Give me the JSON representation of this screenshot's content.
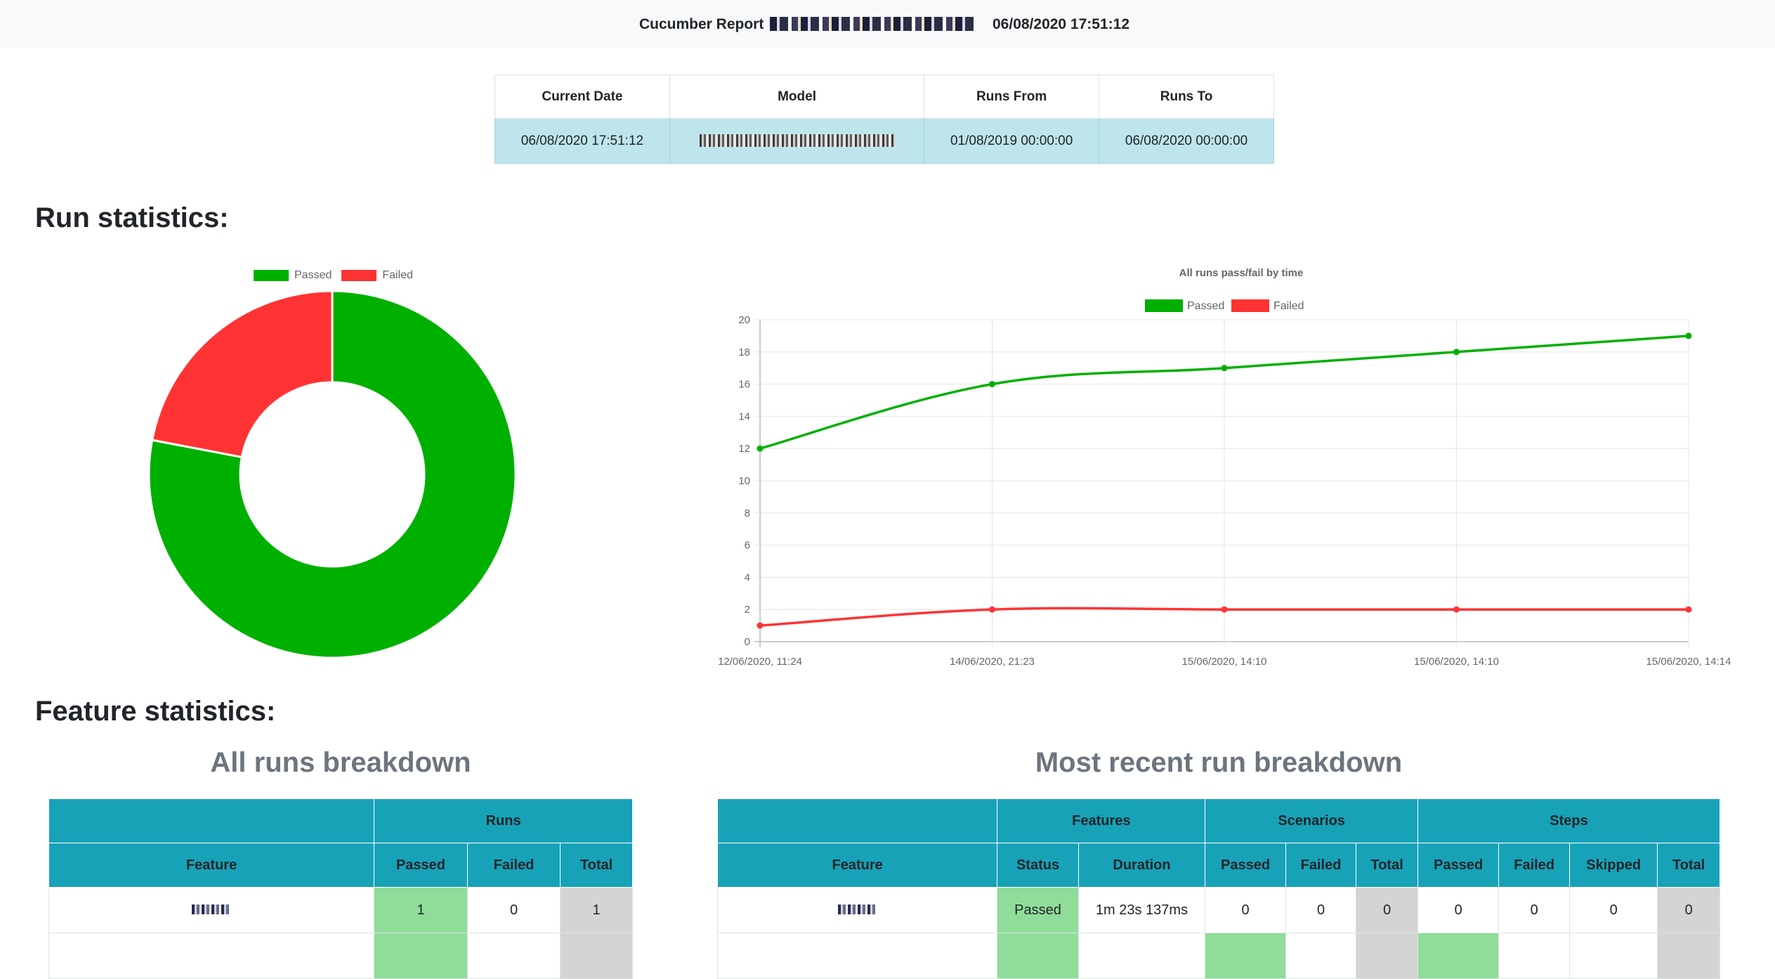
{
  "header": {
    "title": "Cucumber Report",
    "timestamp": "06/08/2020 17:51:12"
  },
  "info_table": {
    "headers": [
      "Current Date",
      "Model",
      "Runs From",
      "Runs To"
    ],
    "row": {
      "current_date": "06/08/2020 17:51:12",
      "runs_from": "01/08/2019 00:00:00",
      "runs_to": "06/08/2020 00:00:00"
    }
  },
  "sections": {
    "run_statistics": "Run statistics:",
    "feature_statistics": "Feature statistics:"
  },
  "colors": {
    "passed": "#00b000",
    "failed": "#ff3333",
    "header_teal": "#17a2b8",
    "info_row": "#bee5eb"
  },
  "chart_data": [
    {
      "type": "pie",
      "variant": "doughnut",
      "labels": [
        "Passed",
        "Failed"
      ],
      "values": [
        78,
        22
      ],
      "legend": "top"
    },
    {
      "type": "line",
      "title": "All runs pass/fail by time",
      "x": [
        "12/06/2020, 11:24",
        "14/06/2020, 21:23",
        "15/06/2020, 14:10",
        "15/06/2020, 14:10",
        "15/06/2020, 14:14"
      ],
      "series": [
        {
          "name": "Passed",
          "values": [
            12,
            16,
            17,
            18,
            19
          ]
        },
        {
          "name": "Failed",
          "values": [
            1,
            2,
            2,
            2,
            2
          ]
        }
      ],
      "ylim": [
        0,
        20
      ],
      "y_ticks": [
        0,
        2,
        4,
        6,
        8,
        10,
        12,
        14,
        16,
        18,
        20
      ],
      "grid": true,
      "legend": "top"
    }
  ],
  "all_runs": {
    "title": "All runs breakdown",
    "group_header": "Runs",
    "headers": [
      "Feature",
      "Passed",
      "Failed",
      "Total"
    ],
    "rows": [
      {
        "passed": "1",
        "failed": "0",
        "total": "1"
      }
    ]
  },
  "recent_run": {
    "title": "Most recent run breakdown",
    "groups": [
      "Features",
      "Scenarios",
      "Steps"
    ],
    "headers": [
      "Feature",
      "Status",
      "Duration",
      "Passed",
      "Failed",
      "Total",
      "Passed",
      "Failed",
      "Skipped",
      "Total"
    ],
    "rows": [
      {
        "status": "Passed",
        "duration": "1m 23s 137ms",
        "sc_passed": "0",
        "sc_failed": "0",
        "sc_total": "0",
        "st_passed": "0",
        "st_failed": "0",
        "st_skipped": "0",
        "st_total": "0"
      }
    ]
  }
}
